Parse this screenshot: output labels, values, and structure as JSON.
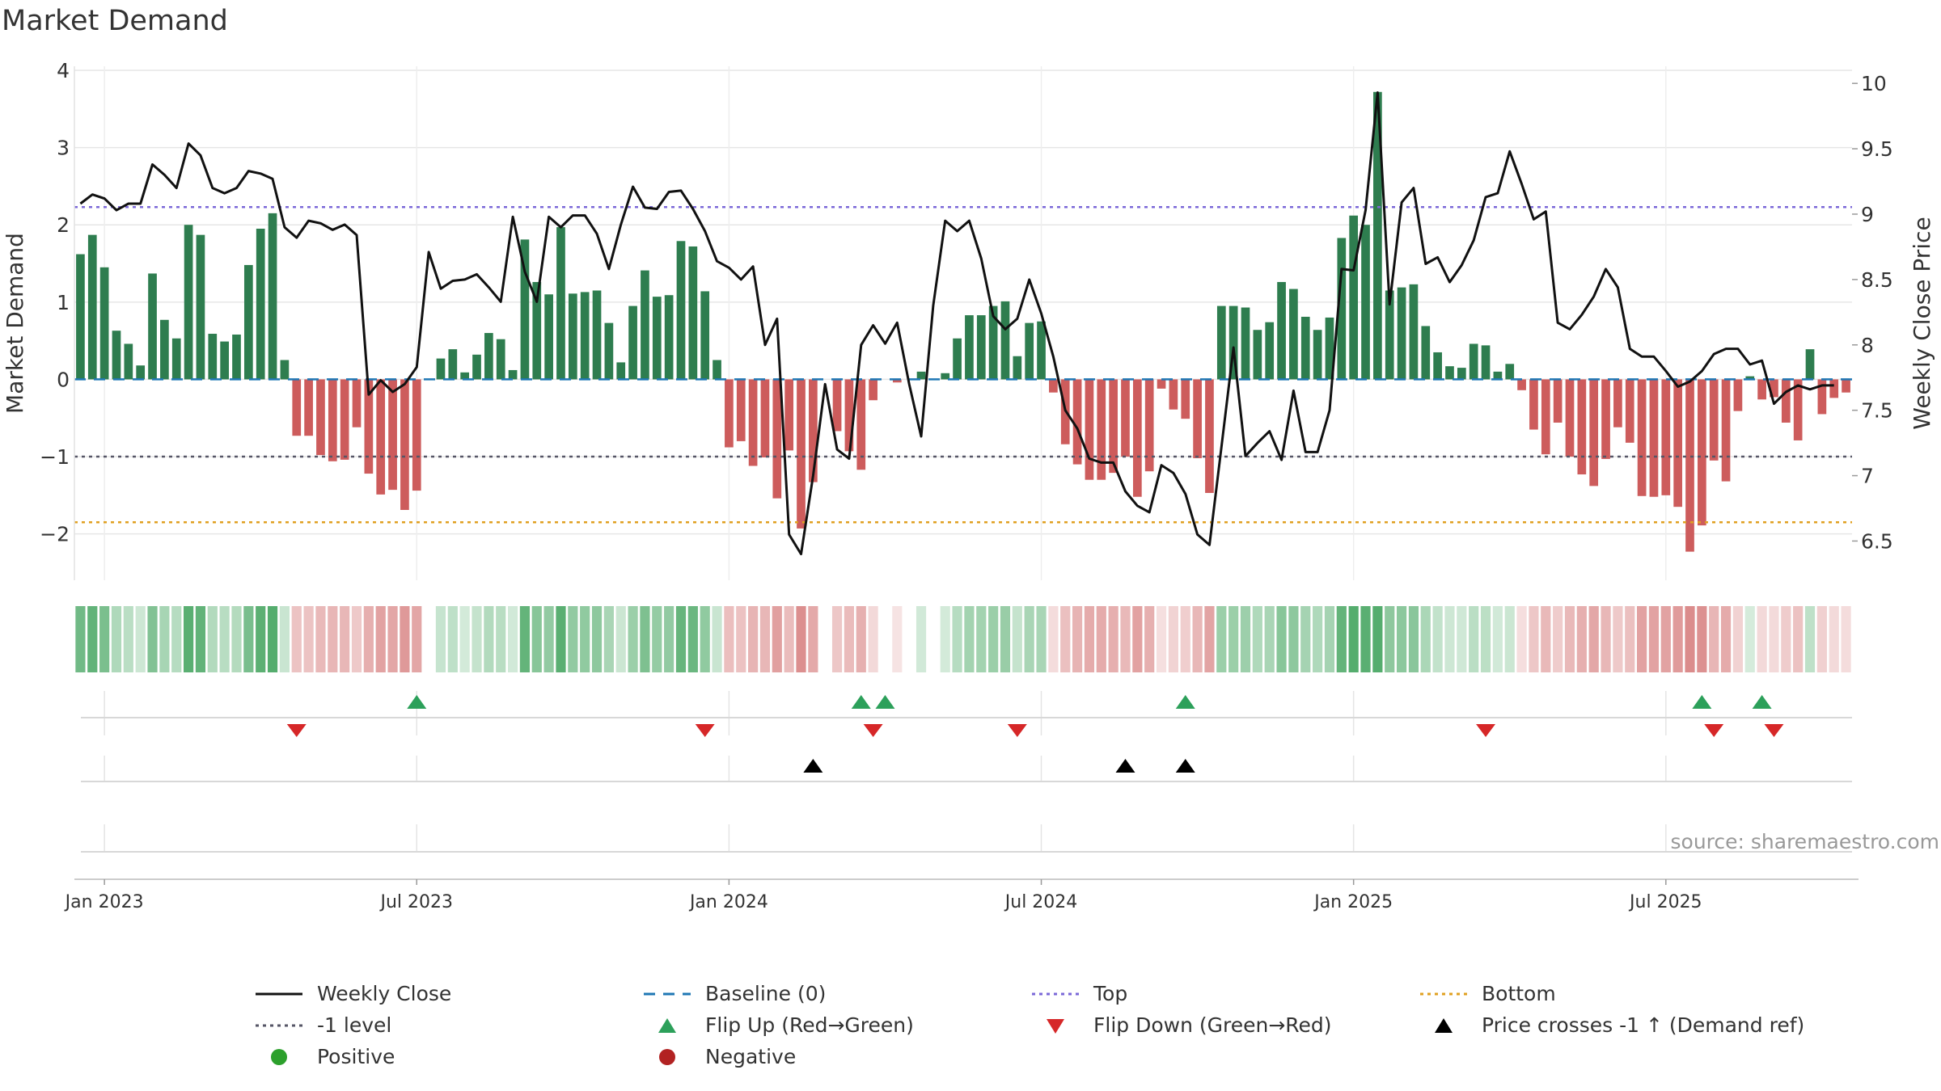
{
  "chart_data": {
    "type": "bar",
    "title": "Market Demand",
    "ylabel_left": "Market Demand",
    "ylabel_right": "Weekly Close Price",
    "ylim_left": [
      -2.6,
      4.0
    ],
    "ylim_right": [
      6.2,
      10.1
    ],
    "yticks_left": [
      "4",
      "3",
      "2",
      "1",
      "0",
      "−1",
      "−2"
    ],
    "yticks_left_values": [
      4,
      3,
      2,
      1,
      0,
      -1,
      -2
    ],
    "yticks_right": [
      "10",
      "9.5",
      "9",
      "8.5",
      "8",
      "7.5",
      "7",
      "6.5"
    ],
    "yticks_right_values": [
      10,
      9.5,
      9,
      8.5,
      8,
      7.5,
      7,
      6.5
    ],
    "x_ticks": [
      "Jan 2023",
      "Jul 2023",
      "Jan 2024",
      "Jul 2024",
      "Jan 2025",
      "Jul 2025"
    ],
    "x_tick_weeks": [
      2,
      28,
      54,
      80,
      106,
      132
    ],
    "reference_lines": {
      "baseline": 0,
      "minus_one": -1,
      "top": 2.23,
      "bottom": -1.85
    },
    "demand": [
      1.62,
      1.87,
      1.45,
      0.63,
      0.46,
      0.18,
      1.37,
      0.77,
      0.53,
      2.0,
      1.87,
      0.59,
      0.49,
      0.58,
      1.48,
      1.95,
      2.15,
      0.25,
      -0.73,
      -0.73,
      -0.98,
      -1.06,
      -1.04,
      -0.62,
      -1.22,
      -1.49,
      -1.43,
      -1.69,
      -1.44,
      0.0,
      0.27,
      0.39,
      0.09,
      0.32,
      0.6,
      0.52,
      0.12,
      1.81,
      1.26,
      1.1,
      1.97,
      1.11,
      1.13,
      1.15,
      0.73,
      0.22,
      0.95,
      1.41,
      1.07,
      1.09,
      1.79,
      1.72,
      1.14,
      0.25,
      -0.88,
      -0.8,
      -1.12,
      -1.01,
      -1.54,
      -0.92,
      -1.93,
      -1.33,
      0.0,
      -0.67,
      -0.93,
      -1.17,
      -0.27,
      0.0,
      -0.04,
      0.0,
      0.1,
      0.0,
      0.08,
      0.53,
      0.83,
      0.83,
      0.95,
      1.01,
      0.3,
      0.73,
      0.75,
      -0.17,
      -0.84,
      -1.1,
      -1.3,
      -1.3,
      -1.21,
      -1.0,
      -1.52,
      -1.19,
      -0.12,
      -0.39,
      -0.51,
      -1.02,
      -1.47,
      0.95,
      0.95,
      0.93,
      0.64,
      0.74,
      1.26,
      1.17,
      0.81,
      0.64,
      0.8,
      1.83,
      2.12,
      2.0,
      3.72,
      1.15,
      1.19,
      1.23,
      0.69,
      0.35,
      0.17,
      0.15,
      0.46,
      0.44,
      0.1,
      0.2,
      -0.14,
      -0.65,
      -0.97,
      -0.56,
      -1.0,
      -1.23,
      -1.38,
      -1.03,
      -0.62,
      -0.82,
      -1.51,
      -1.52,
      -1.5,
      -1.65,
      -2.23,
      -1.89,
      -1.05,
      -1.32,
      -0.41,
      0.04,
      -0.26,
      -0.23,
      -0.56,
      -0.79,
      0.39,
      -0.45,
      -0.24,
      -0.17
    ],
    "weekly_close": [
      9.08,
      9.15,
      9.12,
      9.03,
      9.08,
      9.08,
      9.38,
      9.3,
      9.2,
      9.54,
      9.45,
      9.2,
      9.16,
      9.2,
      9.33,
      9.31,
      9.27,
      8.9,
      8.82,
      8.95,
      8.93,
      8.88,
      8.92,
      8.84,
      7.62,
      7.73,
      7.64,
      7.7,
      7.83,
      8.71,
      8.43,
      8.49,
      8.5,
      8.54,
      8.44,
      8.33,
      8.98,
      8.56,
      8.33,
      8.98,
      8.9,
      8.99,
      8.99,
      8.85,
      8.58,
      8.92,
      9.21,
      9.05,
      9.04,
      9.17,
      9.18,
      9.04,
      8.87,
      8.64,
      8.59,
      8.5,
      8.6,
      8.0,
      8.2,
      6.55,
      6.4,
      7.0,
      7.7,
      7.2,
      7.13,
      8.0,
      8.15,
      8.01,
      8.17,
      7.7,
      7.3,
      8.3,
      8.95,
      8.87,
      8.95,
      8.66,
      8.22,
      8.12,
      8.2,
      8.5,
      8.24,
      7.91,
      7.5,
      7.36,
      7.13,
      7.1,
      7.1,
      6.88,
      6.77,
      6.72,
      7.08,
      7.02,
      6.86,
      6.55,
      6.47,
      7.22,
      7.98,
      7.15,
      7.25,
      7.34,
      7.12,
      7.65,
      7.18,
      7.18,
      7.5,
      8.58,
      8.57,
      9.03,
      9.93,
      8.31,
      9.09,
      9.2,
      8.62,
      8.67,
      8.48,
      8.61,
      8.8,
      9.13,
      9.16,
      9.48,
      9.23,
      8.96,
      9.02,
      8.17,
      8.12,
      8.23,
      8.37,
      8.58,
      8.44,
      7.97,
      7.91,
      7.91,
      7.8,
      7.68,
      7.72,
      7.8,
      7.93,
      7.97,
      7.97,
      7.85,
      7.88,
      7.55,
      7.64,
      7.69,
      7.66,
      7.69,
      7.69
    ],
    "flip_up_weeks": [
      28,
      65,
      67,
      92,
      135,
      140
    ],
    "flip_down_weeks": [
      18,
      52,
      66,
      78,
      117,
      136,
      141
    ],
    "price_cross_weeks": [
      61,
      87,
      92
    ],
    "source": "source: sharemaestro.com",
    "legend": [
      {
        "label": "Weekly Close",
        "symbol": "line",
        "color": "#111111"
      },
      {
        "label": "Baseline (0)",
        "symbol": "dash",
        "color": "#1f77b4"
      },
      {
        "label": "Top",
        "symbol": "dot",
        "color": "#7b68d8"
      },
      {
        "label": "Bottom",
        "symbol": "dot",
        "color": "#e0a020"
      },
      {
        "label": "-1 level",
        "symbol": "dot",
        "color": "#555566"
      },
      {
        "label": "Flip Up (Red→Green)",
        "symbol": "tri-up",
        "color": "#2ca05a"
      },
      {
        "label": "Flip Down (Green→Red)",
        "symbol": "tri-down",
        "color": "#d62728"
      },
      {
        "label": "Price crosses -1 ↑ (Demand ref)",
        "symbol": "tri-up",
        "color": "#000000"
      },
      {
        "label": "Positive",
        "symbol": "circle",
        "color": "#2ca02c"
      },
      {
        "label": "Negative",
        "symbol": "circle",
        "color": "#b22222"
      }
    ]
  },
  "colors": {
    "positive_bar": "#2e7d4f",
    "negative_bar": "#cd5c5c",
    "heat_positive": "#2e9a4c",
    "heat_negative": "#c85050",
    "grid": "#e6e6e6",
    "axis_text": "#333333"
  }
}
